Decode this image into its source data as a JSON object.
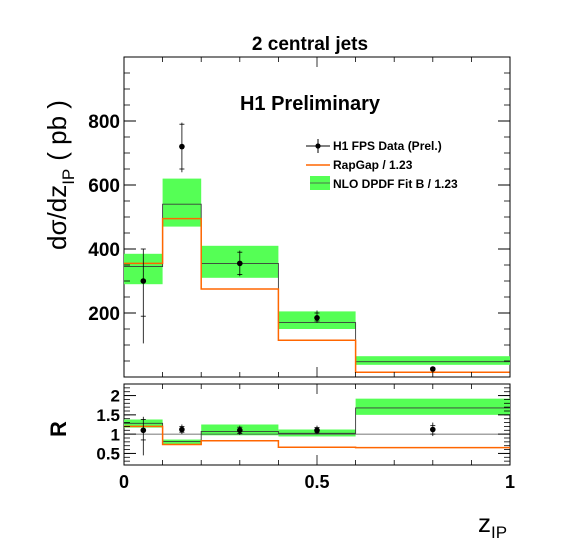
{
  "chart_data": [
    {
      "type": "histogram",
      "title": "2 central jets",
      "annotation": "H1 Preliminary",
      "ylabel": {
        "main": "dσ/dz",
        "sub": "IP",
        "unit": "( pb )"
      },
      "xlim": [
        0,
        1
      ],
      "ylim": [
        0,
        1000
      ],
      "yticks": [
        200,
        400,
        600,
        800
      ],
      "bins": [
        0,
        0.1,
        0.2,
        0.4,
        0.6,
        1.0
      ],
      "legend": {
        "placement": "top-right",
        "entries": [
          {
            "key": "data",
            "label": "H1 FPS Data (Prel.)"
          },
          {
            "key": "rapgap",
            "label": "RapGap / 1.23"
          },
          {
            "key": "nlo",
            "label": "NLO DPDF Fit B / 1.23"
          }
        ]
      },
      "series": [
        {
          "key": "data",
          "name": "H1 FPS Data (Prel.)",
          "color": "#000000",
          "x": [
            0.05,
            0.15,
            0.3,
            0.5,
            0.8
          ],
          "y": [
            300,
            720,
            355,
            185,
            25
          ],
          "stat_lo": [
            190,
            650,
            320,
            175,
            22
          ],
          "stat_hi": [
            400,
            790,
            390,
            200,
            28
          ],
          "tot_lo": [
            105,
            640,
            315,
            170,
            20
          ],
          "tot_hi": [
            400,
            795,
            395,
            208,
            30
          ]
        },
        {
          "key": "rapgap",
          "name": "RapGap / 1.23",
          "color": "#ff6600",
          "values": [
            355,
            495,
            275,
            115,
            15
          ]
        },
        {
          "key": "nlo",
          "name": "NLO DPDF Fit B / 1.23",
          "color": "#00ff00",
          "values": [
            345,
            540,
            355,
            170,
            48
          ],
          "band_lo": [
            290,
            470,
            310,
            150,
            38
          ],
          "band_hi": [
            385,
            620,
            410,
            205,
            65
          ]
        }
      ]
    },
    {
      "type": "histogram",
      "ylabel": "R",
      "xlabel": {
        "main": "z",
        "sub": "IP"
      },
      "xlim": [
        0,
        1
      ],
      "ylim": [
        0.2,
        2.3
      ],
      "yticks": [
        0.5,
        1,
        1.5,
        2
      ],
      "ytick_labels": [
        "0.5",
        "1",
        "1.5",
        "2"
      ],
      "xticks": [
        0,
        0.5,
        1
      ],
      "xtick_labels": [
        "0",
        "0.5",
        "1"
      ],
      "bins": [
        0,
        0.1,
        0.2,
        0.4,
        0.6,
        1.0
      ],
      "series": [
        {
          "key": "data",
          "name": "H1 FPS Data (Prel.)",
          "color": "#000000",
          "x": [
            0.05,
            0.15,
            0.3,
            0.5,
            0.8
          ],
          "y": [
            1.1,
            1.12,
            1.1,
            1.1,
            1.12
          ],
          "stat_lo": [
            0.85,
            1.05,
            1.02,
            1.03,
            1.0
          ],
          "stat_hi": [
            1.38,
            1.2,
            1.18,
            1.17,
            1.22
          ],
          "tot_lo": [
            0.45,
            1.0,
            0.98,
            1.0,
            0.95
          ],
          "tot_hi": [
            1.45,
            1.25,
            1.22,
            1.22,
            1.3
          ]
        },
        {
          "key": "rapgap",
          "name": "RapGap / 1.23",
          "color": "#ff6600",
          "values": [
            1.2,
            0.73,
            0.83,
            0.66,
            0.65
          ]
        },
        {
          "key": "nlo",
          "name": "NLO DPDF Fit B / 1.23",
          "color": "#00ff00",
          "values": [
            1.28,
            0.81,
            1.07,
            1.02,
            1.68
          ],
          "band_lo": [
            1.17,
            0.74,
            0.97,
            0.94,
            1.5
          ],
          "band_hi": [
            1.38,
            0.86,
            1.25,
            1.12,
            1.92
          ]
        }
      ],
      "reference_line": 1
    }
  ]
}
